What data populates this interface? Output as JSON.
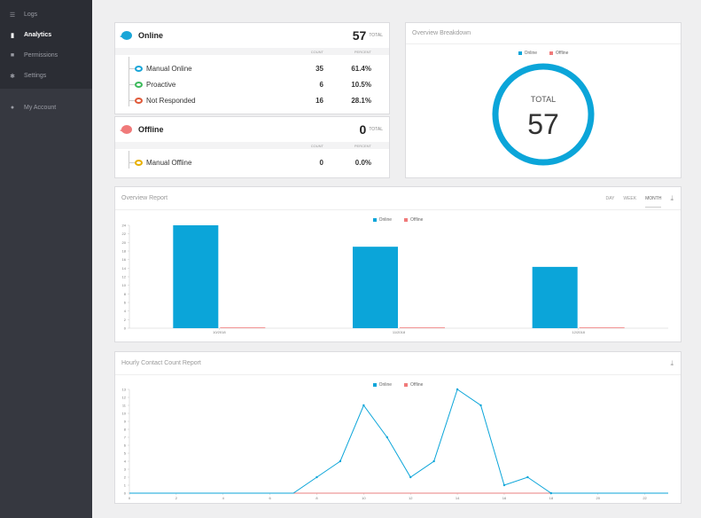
{
  "sidebar": {
    "items": [
      {
        "label": "Logs",
        "icon": "list-icon"
      },
      {
        "label": "Analytics",
        "icon": "bar-chart-icon"
      },
      {
        "label": "Permissions",
        "icon": "lock-icon"
      },
      {
        "label": "Settings",
        "icon": "gear-icon"
      }
    ],
    "account": {
      "label": "My Account",
      "icon": "user-icon"
    }
  },
  "online_card": {
    "label": "Online",
    "total": "57",
    "total_label": "TOTAL",
    "count_header": "COUNT",
    "percent_header": "PERCENT",
    "color": "#1aa6d8",
    "rows": [
      {
        "name": "Manual Online",
        "count": "35",
        "percent": "61.4%",
        "color": "#1aa6d8"
      },
      {
        "name": "Proactive",
        "count": "6",
        "percent": "10.5%",
        "color": "#3dba5c"
      },
      {
        "name": "Not Responded",
        "count": "16",
        "percent": "28.1%",
        "color": "#e05a3a"
      }
    ]
  },
  "offline_card": {
    "label": "Offline",
    "total": "0",
    "total_label": "TOTAL",
    "count_header": "COUNT",
    "percent_header": "PERCENT",
    "color": "#f07a7a",
    "rows": [
      {
        "name": "Manual Offline",
        "count": "0",
        "percent": "0.0%",
        "color": "#e8b000"
      }
    ]
  },
  "breakdown": {
    "title": "Overview Breakdown",
    "legend": [
      {
        "name": "Online",
        "color": "#0ba5d9"
      },
      {
        "name": "Offline",
        "color": "#f07a7a"
      }
    ],
    "center_label": "TOTAL",
    "center_value": "57"
  },
  "overview_report": {
    "title": "Overview Report",
    "tabs": [
      "DAY",
      "WEEK",
      "MONTH"
    ],
    "active_tab": "MONTH",
    "legend": [
      {
        "name": "Online",
        "color": "#0ba5d9"
      },
      {
        "name": "Offline",
        "color": "#f07a7a"
      }
    ]
  },
  "hourly_report": {
    "title": "Hourly Contact Count Report",
    "legend": [
      {
        "name": "Online",
        "color": "#0ba5d9"
      },
      {
        "name": "Offline",
        "color": "#f07a7a"
      }
    ]
  },
  "chart_data": [
    {
      "type": "bar",
      "categories": [
        "10/2018",
        "11/2018",
        "12/2018"
      ],
      "series": [
        {
          "name": "Online",
          "values": [
            24,
            19,
            14.3
          ]
        },
        {
          "name": "Offline",
          "values": [
            0,
            0,
            0
          ]
        }
      ],
      "ylim": [
        0,
        24
      ],
      "yticks": [
        0,
        2,
        4,
        6,
        8,
        10,
        12,
        14,
        16,
        18,
        20,
        22,
        24
      ],
      "legend": "top-center",
      "grid": false
    },
    {
      "type": "line",
      "x": [
        0,
        1,
        2,
        3,
        4,
        5,
        6,
        7,
        8,
        9,
        10,
        11,
        12,
        13,
        14,
        15,
        16,
        17,
        18,
        19,
        20,
        21,
        22,
        23
      ],
      "series": [
        {
          "name": "Online",
          "values": [
            0,
            0,
            0,
            0,
            0,
            0,
            0,
            0,
            2,
            4,
            11,
            7,
            2,
            4,
            13,
            11,
            1,
            2,
            0,
            0,
            0,
            0,
            0,
            0
          ]
        },
        {
          "name": "Offline",
          "values": [
            0,
            0,
            0,
            0,
            0,
            0,
            0,
            0,
            0,
            0,
            0,
            0,
            0,
            0,
            0,
            0,
            0,
            0,
            0,
            0,
            0,
            0,
            0,
            0
          ]
        }
      ],
      "xticks": [
        0,
        2,
        4,
        6,
        8,
        10,
        12,
        14,
        16,
        18,
        20,
        22
      ],
      "yticks": [
        0,
        1,
        2,
        3,
        4,
        5,
        6,
        7,
        8,
        9,
        10,
        11,
        12,
        13
      ],
      "ylim": [
        0,
        13
      ],
      "xlim": [
        0,
        23
      ],
      "legend": "top-center",
      "grid": false
    }
  ]
}
